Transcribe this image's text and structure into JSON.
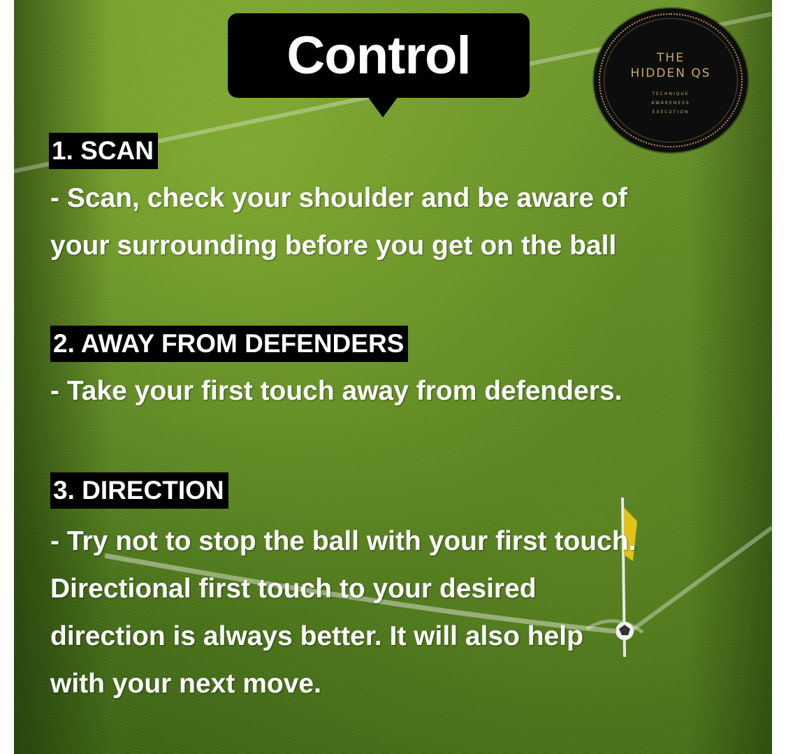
{
  "title": "Control",
  "logo": {
    "line1": "THE",
    "line2": "HIDDEN QS",
    "tagline": [
      "TECHNIQUE",
      "AWARENESS",
      "EXECUTION"
    ]
  },
  "sections": [
    {
      "heading": "1. SCAN",
      "lines": [
        "- Scan, check your shoulder and be aware of",
        "your surrounding before you get on the ball"
      ]
    },
    {
      "heading": "2. AWAY FROM DEFENDERS",
      "lines": [
        "- Take your first touch away from defenders."
      ]
    },
    {
      "heading": "3. DIRECTION",
      "lines": [
        "- Try not to stop the ball with your first touch.",
        "Directional first touch to your desired",
        "direction is always better. It will also help",
        "with your next move."
      ]
    }
  ],
  "colors": {
    "grass": "#5f8a24",
    "label_bg": "#000000",
    "text": "#ffffff",
    "logo_gold": "#c8a96a"
  },
  "icons": [
    "corner-flag-icon",
    "football-icon"
  ]
}
